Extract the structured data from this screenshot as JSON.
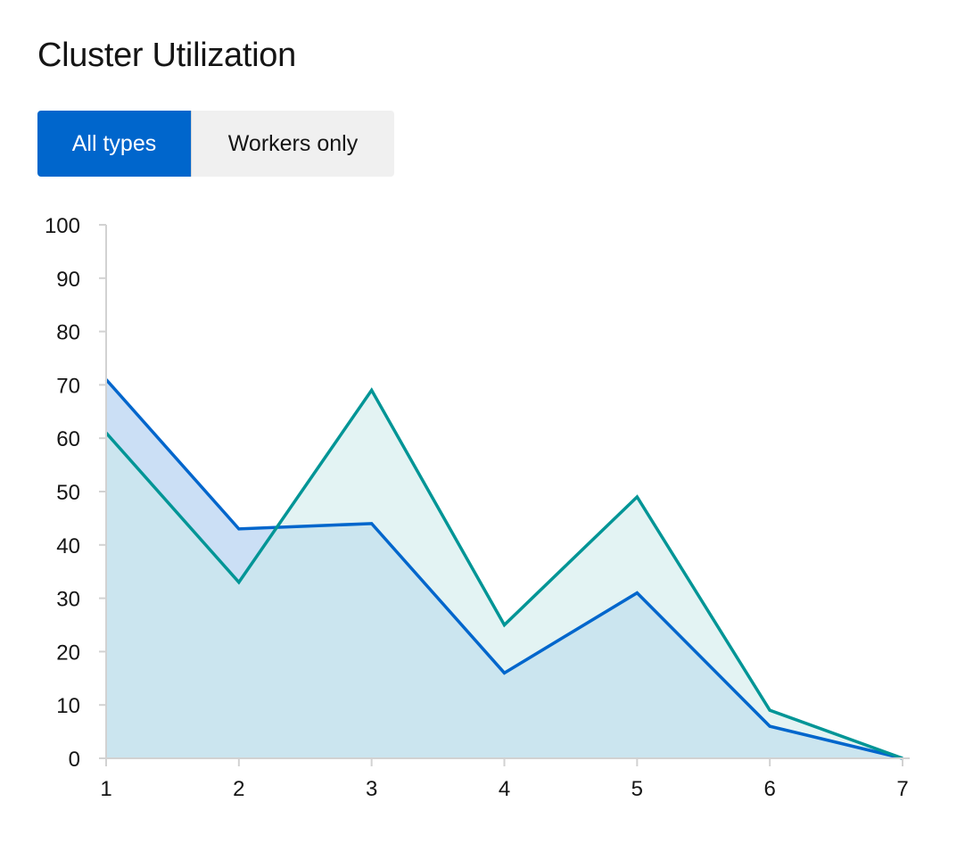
{
  "header": {
    "title": "Cluster Utilization"
  },
  "toggle_group": {
    "items": [
      {
        "label": "All types",
        "selected": true
      },
      {
        "label": "Workers only",
        "selected": false
      }
    ]
  },
  "colors": {
    "accent": "#0066cc",
    "series_blue": "#0066cc",
    "series_teal": "#009596",
    "axis": "#d2d2d2"
  },
  "chart_data": {
    "type": "area",
    "title": "",
    "xlabel": "",
    "ylabel": "",
    "x": [
      1,
      2,
      3,
      4,
      5,
      6,
      7
    ],
    "xlim": [
      1,
      7
    ],
    "ylim": [
      0,
      100
    ],
    "yticks": [
      0,
      10,
      20,
      30,
      40,
      50,
      60,
      70,
      80,
      90,
      100
    ],
    "xticks": [
      1,
      2,
      3,
      4,
      5,
      6,
      7
    ],
    "grid": false,
    "legend": "none",
    "series": [
      {
        "values": [
          71,
          43,
          44,
          16,
          31,
          6,
          0
        ],
        "color": "#0066cc",
        "fill": "#cbdff5"
      },
      {
        "values": [
          61,
          33,
          69,
          25,
          49,
          9,
          0
        ],
        "color": "#009596",
        "fill": "#cceaea"
      }
    ]
  }
}
